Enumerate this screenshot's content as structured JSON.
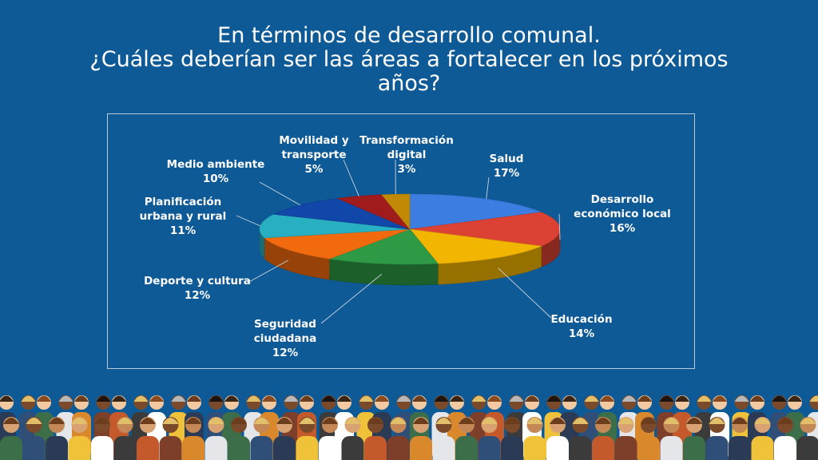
{
  "title": {
    "line1": "En términos de desarrollo comunal.",
    "line2": "¿Cuáles deberían ser las áreas a fortalecer en los próximos",
    "line3": "años?"
  },
  "chart_data": {
    "type": "pie",
    "style": "3d",
    "title": "",
    "slices": [
      {
        "label_lines": [
          "Salud"
        ],
        "value": 17,
        "display": "17%",
        "color": "#3b7de0"
      },
      {
        "label_lines": [
          "Desarrollo",
          "económico local"
        ],
        "value": 16,
        "display": "16%",
        "color": "#dc4233"
      },
      {
        "label_lines": [
          "Educación"
        ],
        "value": 14,
        "display": "14%",
        "color": "#f2b600"
      },
      {
        "label_lines": [
          "Seguridad",
          "ciudadana"
        ],
        "value": 12,
        "display": "12%",
        "color": "#2f9a46"
      },
      {
        "label_lines": [
          "Deporte y cultura"
        ],
        "value": 12,
        "display": "12%",
        "color": "#f26a0e"
      },
      {
        "label_lines": [
          "Planificación",
          "urbana y rural"
        ],
        "value": 11,
        "display": "11%",
        "color": "#28afc1"
      },
      {
        "label_lines": [
          "Medio ambiente"
        ],
        "value": 10,
        "display": "10%",
        "color": "#1147a8"
      },
      {
        "label_lines": [
          "Movilidad y",
          "transporte"
        ],
        "value": 5,
        "display": "5%",
        "color": "#a01c1c"
      },
      {
        "label_lines": [
          "Transformación",
          "digital"
        ],
        "value": 3,
        "display": "3%",
        "color": "#c08a06"
      }
    ]
  }
}
